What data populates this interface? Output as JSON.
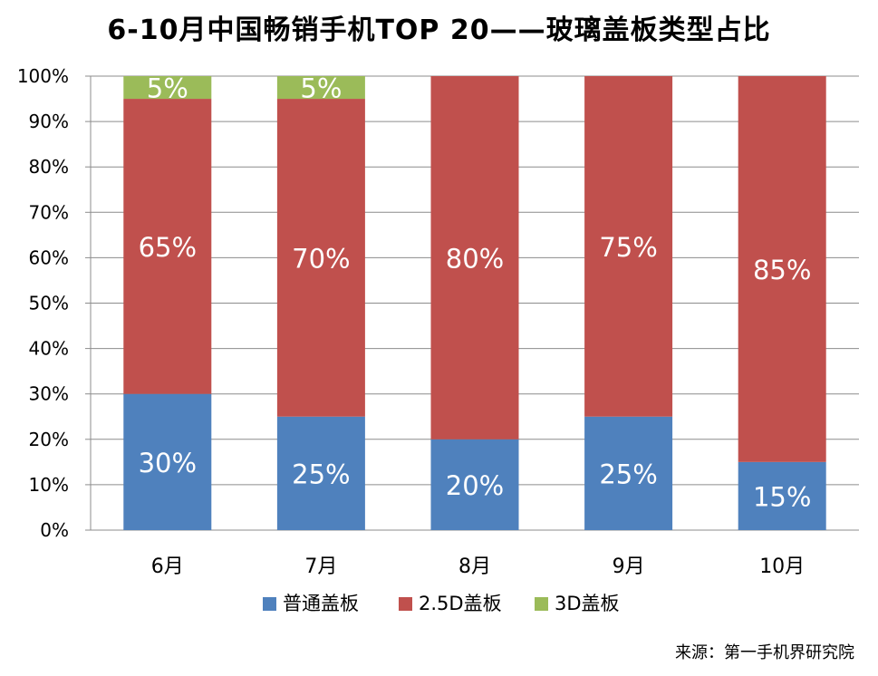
{
  "chart_data": {
    "type": "bar",
    "stacked": true,
    "title": "6-10月中国畅销手机TOP 20——玻璃盖板类型占比",
    "categories": [
      "6月",
      "7月",
      "8月",
      "9月",
      "10月"
    ],
    "series": [
      {
        "name": "普通盖板",
        "color": "#4F81BD",
        "values": [
          30,
          25,
          20,
          25,
          15
        ]
      },
      {
        "name": "2.5D盖板",
        "color": "#C0504D",
        "values": [
          65,
          70,
          80,
          75,
          85
        ]
      },
      {
        "name": "3D盖板",
        "color": "#9BBB59",
        "values": [
          5,
          5,
          0,
          0,
          0
        ]
      }
    ],
    "value_labels": [
      [
        "30%",
        "25%",
        "20%",
        "25%",
        "15%"
      ],
      [
        "65%",
        "70%",
        "80%",
        "75%",
        "85%"
      ],
      [
        "5%",
        "5%",
        "",
        "",
        ""
      ]
    ],
    "y_ticks": [
      "0%",
      "10%",
      "20%",
      "30%",
      "40%",
      "50%",
      "60%",
      "70%",
      "80%",
      "90%",
      "100%"
    ],
    "ylim": [
      0,
      100
    ],
    "grid": true,
    "legend_position": "bottom",
    "source": "来源：第一手机界研究院"
  }
}
